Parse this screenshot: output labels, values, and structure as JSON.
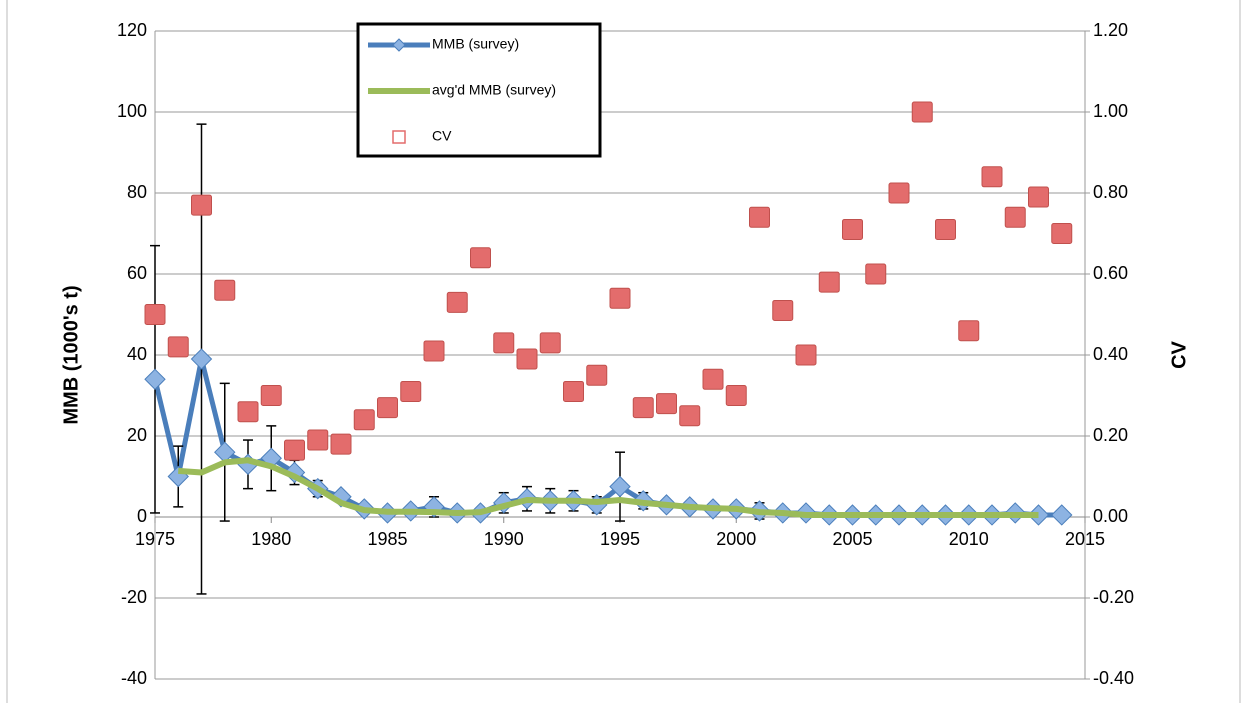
{
  "chart_data": {
    "type": "line",
    "y_axis_title": "MMB (1000's t)",
    "y2_axis_title": "CV",
    "x": [
      1975,
      1976,
      1977,
      1978,
      1979,
      1980,
      1981,
      1982,
      1983,
      1984,
      1985,
      1986,
      1987,
      1988,
      1989,
      1990,
      1991,
      1992,
      1993,
      1994,
      1995,
      1996,
      1997,
      1998,
      1999,
      2000,
      2001,
      2002,
      2003,
      2004,
      2005,
      2006,
      2007,
      2008,
      2009,
      2010,
      2011,
      2012,
      2013,
      2014
    ],
    "xlim": [
      1975,
      2015
    ],
    "xticks": [
      1975,
      1980,
      1985,
      1990,
      1995,
      2000,
      2005,
      2010,
      2015
    ],
    "ylim": [
      -40,
      120
    ],
    "yticks": [
      -40,
      -20,
      0,
      20,
      40,
      60,
      80,
      100,
      120
    ],
    "y2lim": [
      -0.4,
      1.2
    ],
    "y2ticks": [
      {
        "value": -0.4,
        "label": "-0.40"
      },
      {
        "value": -0.2,
        "label": "-0.20"
      },
      {
        "value": 0,
        "label": "0.00"
      },
      {
        "value": 0.2,
        "label": "0.20"
      },
      {
        "value": 0.4,
        "label": "0.40"
      },
      {
        "value": 0.6,
        "label": "0.60"
      },
      {
        "value": 0.8,
        "label": "0.80"
      },
      {
        "value": 1.0,
        "label": "1.00"
      },
      {
        "value": 1.2,
        "label": "1.20"
      }
    ],
    "grid": true,
    "series": [
      {
        "name": "MMB (survey)",
        "type": "line",
        "marker": "diamond",
        "color": "#4a7ebb",
        "values": [
          34,
          10,
          39,
          16,
          13,
          14.5,
          11,
          7,
          5,
          2,
          1,
          1.5,
          2.5,
          1,
          1,
          3.5,
          4.5,
          4,
          4,
          3,
          7.5,
          4,
          3,
          2.5,
          2,
          2,
          1.5,
          1,
          1,
          0.5,
          0.5,
          0.5,
          0.5,
          0.5,
          0.5,
          0.5,
          0.5,
          1,
          0.5,
          0.5
        ],
        "errors": [
          33,
          7.5,
          58,
          17,
          6,
          8,
          3,
          2,
          1,
          0.5,
          0.5,
          0.5,
          2.5,
          0.5,
          0.5,
          2.5,
          3,
          3,
          2.5,
          2,
          8.5,
          2,
          0.5,
          0.5,
          0.5,
          0.5,
          2,
          0.5,
          0.5,
          0.5,
          0.5,
          0.5,
          0.5,
          0.5,
          0.5,
          0.5,
          0.5,
          0.5,
          0.5,
          0.5
        ]
      },
      {
        "name": "avg'd MMB (survey)",
        "type": "line",
        "color": "#9bbb59",
        "values": [
          null,
          11.4,
          11,
          13.5,
          14,
          12.5,
          10,
          7,
          3.5,
          1.7,
          1.3,
          1.3,
          1.2,
          1,
          1.2,
          2.7,
          4.2,
          4,
          4,
          3.7,
          4.2,
          3.5,
          3,
          2.5,
          2.2,
          2,
          1.2,
          1,
          0.5,
          0.5,
          0.5,
          0.5,
          0.5,
          0.5,
          0.5,
          0.5,
          0.5,
          0.5,
          0.5,
          null
        ]
      },
      {
        "name": "CV",
        "type": "scatter",
        "marker": "square",
        "axis": "y2",
        "color": "#e36c6c",
        "values": [
          0.5,
          0.42,
          0.77,
          0.56,
          0.26,
          0.3,
          0.165,
          0.19,
          0.18,
          0.24,
          0.27,
          0.31,
          0.41,
          0.53,
          0.64,
          0.43,
          0.39,
          0.43,
          0.31,
          0.35,
          0.54,
          0.27,
          0.28,
          0.25,
          0.34,
          0.3,
          0.74,
          0.51,
          0.4,
          0.58,
          0.71,
          0.6,
          0.8,
          1.0,
          0.71,
          0.46,
          0.84,
          0.74,
          0.79,
          0.7
        ]
      }
    ]
  }
}
